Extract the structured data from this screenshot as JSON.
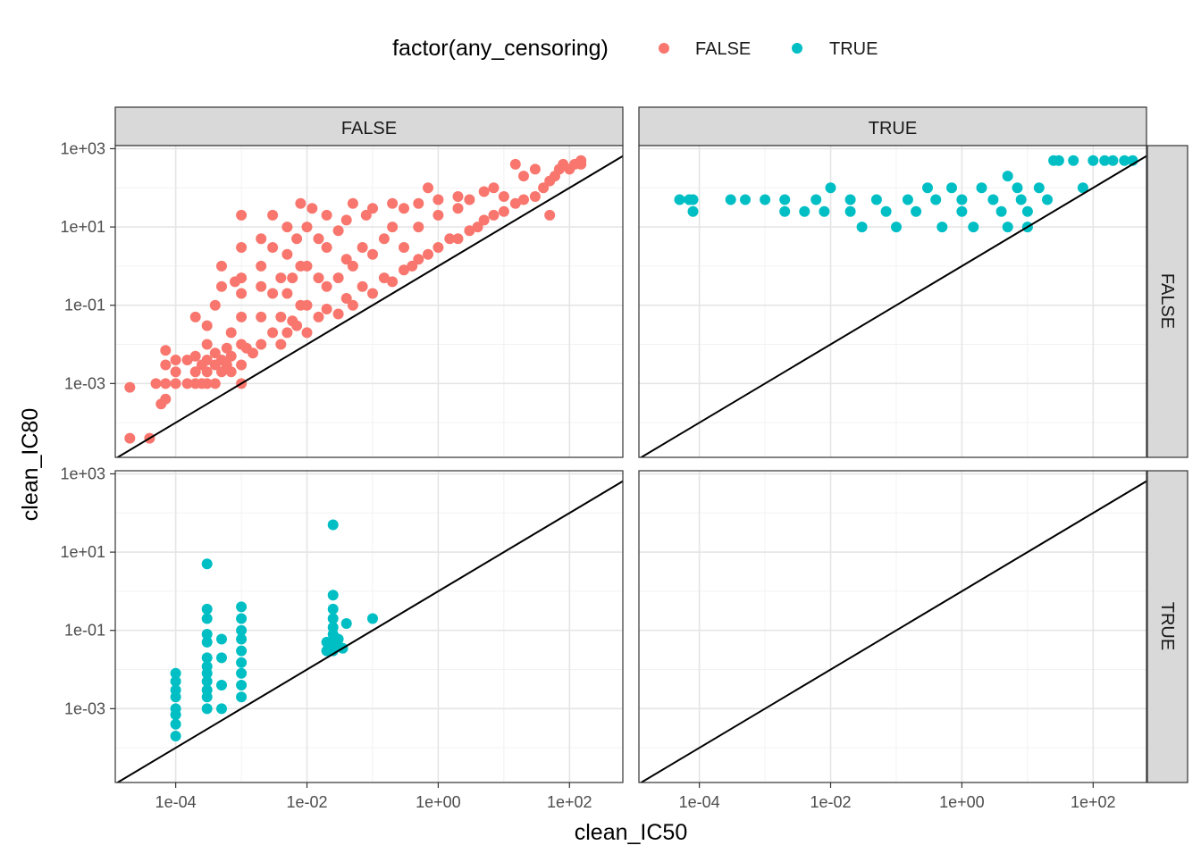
{
  "chart_data": {
    "type": "scatter",
    "facet_grid": {
      "cols_var_levels": [
        "FALSE",
        "TRUE"
      ],
      "rows_var_levels": [
        "FALSE",
        "TRUE"
      ]
    },
    "xlabel": "clean_IC50",
    "ylabel": "clean_IC80",
    "x_scale": "log10",
    "y_scale": "log10",
    "x_ticks": [
      "1e-04",
      "1e-02",
      "1e+00",
      "1e+02"
    ],
    "y_ticks": [
      "1e-03",
      "1e-01",
      "1e+01",
      "1e+03"
    ],
    "xlim": [
      1.2e-05,
      650
    ],
    "ylim": [
      1.3e-05,
      1200
    ],
    "grid": true,
    "reference_line": "y = x",
    "legend": {
      "title": "factor(any_censoring)",
      "position": "top",
      "entries": [
        {
          "label": "FALSE",
          "color": "#F8766D"
        },
        {
          "label": "TRUE",
          "color": "#00BFC4"
        }
      ]
    },
    "panels": [
      {
        "col": "FALSE",
        "row": "FALSE",
        "color": "#F8766D",
        "points": [
          [
            2e-05,
            0.0008
          ],
          [
            2e-05,
            4e-05
          ],
          [
            4e-05,
            4e-05
          ],
          [
            5e-05,
            0.001
          ],
          [
            6e-05,
            0.0003
          ],
          [
            7e-05,
            0.0004
          ],
          [
            7e-05,
            0.001
          ],
          [
            7e-05,
            0.003
          ],
          [
            7e-05,
            0.007
          ],
          [
            0.0001,
            0.001
          ],
          [
            0.0001,
            0.002
          ],
          [
            0.0001,
            0.004
          ],
          [
            0.00015,
            0.001
          ],
          [
            0.00015,
            0.004
          ],
          [
            0.0002,
            0.001
          ],
          [
            0.0002,
            0.002
          ],
          [
            0.0002,
            0.005
          ],
          [
            0.0002,
            0.05
          ],
          [
            0.00025,
            0.001
          ],
          [
            0.00025,
            0.003
          ],
          [
            0.0003,
            0.001
          ],
          [
            0.0003,
            0.002
          ],
          [
            0.0003,
            0.004
          ],
          [
            0.0003,
            0.01
          ],
          [
            0.0003,
            0.03
          ],
          [
            0.0004,
            0.001
          ],
          [
            0.0004,
            0.003
          ],
          [
            0.0004,
            0.006
          ],
          [
            0.0004,
            0.1
          ],
          [
            0.0005,
            0.002
          ],
          [
            0.0005,
            0.004
          ],
          [
            0.0005,
            0.3
          ],
          [
            0.0005,
            1
          ],
          [
            0.0006,
            0.003
          ],
          [
            0.0006,
            0.008
          ],
          [
            0.0007,
            0.002
          ],
          [
            0.0007,
            0.005
          ],
          [
            0.0007,
            0.02
          ],
          [
            0.0008,
            0.4
          ],
          [
            0.001,
            0.001
          ],
          [
            0.001,
            0.003
          ],
          [
            0.001,
            0.01
          ],
          [
            0.001,
            0.05
          ],
          [
            0.001,
            0.2
          ],
          [
            0.001,
            0.5
          ],
          [
            0.001,
            3
          ],
          [
            0.001,
            20
          ],
          [
            0.0012,
            0.008
          ],
          [
            0.0015,
            0.006
          ],
          [
            0.002,
            0.01
          ],
          [
            0.002,
            0.05
          ],
          [
            0.002,
            0.3
          ],
          [
            0.002,
            1
          ],
          [
            0.002,
            5
          ],
          [
            0.003,
            0.02
          ],
          [
            0.003,
            0.2
          ],
          [
            0.003,
            3
          ],
          [
            0.003,
            20
          ],
          [
            0.004,
            0.01
          ],
          [
            0.004,
            0.05
          ],
          [
            0.004,
            0.5
          ],
          [
            0.005,
            0.02
          ],
          [
            0.005,
            0.2
          ],
          [
            0.005,
            2
          ],
          [
            0.005,
            10
          ],
          [
            0.006,
            0.04
          ],
          [
            0.006,
            0.5
          ],
          [
            0.007,
            0.03
          ],
          [
            0.007,
            5
          ],
          [
            0.008,
            0.1
          ],
          [
            0.008,
            1
          ],
          [
            0.008,
            40
          ],
          [
            0.01,
            0.02
          ],
          [
            0.01,
            0.1
          ],
          [
            0.01,
            1
          ],
          [
            0.01,
            10
          ],
          [
            0.012,
            30
          ],
          [
            0.015,
            0.05
          ],
          [
            0.015,
            0.5
          ],
          [
            0.015,
            5
          ],
          [
            0.02,
            0.08
          ],
          [
            0.02,
            0.3
          ],
          [
            0.02,
            3
          ],
          [
            0.02,
            20
          ],
          [
            0.03,
            0.06
          ],
          [
            0.03,
            0.5
          ],
          [
            0.03,
            8
          ],
          [
            0.04,
            0.15
          ],
          [
            0.04,
            1.5
          ],
          [
            0.04,
            15
          ],
          [
            0.05,
            0.1
          ],
          [
            0.05,
            1
          ],
          [
            0.05,
            40
          ],
          [
            0.07,
            0.3
          ],
          [
            0.07,
            3
          ],
          [
            0.08,
            20
          ],
          [
            0.1,
            0.2
          ],
          [
            0.1,
            2
          ],
          [
            0.1,
            30
          ],
          [
            0.15,
            0.5
          ],
          [
            0.15,
            5
          ],
          [
            0.2,
            0.4
          ],
          [
            0.2,
            10
          ],
          [
            0.2,
            40
          ],
          [
            0.3,
            0.8
          ],
          [
            0.3,
            3
          ],
          [
            0.3,
            30
          ],
          [
            0.4,
            1
          ],
          [
            0.5,
            1.5
          ],
          [
            0.5,
            10
          ],
          [
            0.5,
            40
          ],
          [
            0.7,
            100
          ],
          [
            0.7,
            2
          ],
          [
            1,
            3
          ],
          [
            1,
            20
          ],
          [
            1,
            50
          ],
          [
            1.5,
            5
          ],
          [
            2,
            5
          ],
          [
            2,
            30
          ],
          [
            2,
            60
          ],
          [
            3,
            8
          ],
          [
            3,
            50
          ],
          [
            4,
            10
          ],
          [
            5,
            15
          ],
          [
            5,
            80
          ],
          [
            7,
            20
          ],
          [
            7,
            100
          ],
          [
            10,
            25
          ],
          [
            10,
            60
          ],
          [
            15,
            40
          ],
          [
            15,
            400
          ],
          [
            20,
            50
          ],
          [
            20,
            200
          ],
          [
            30,
            60
          ],
          [
            30,
            300
          ],
          [
            40,
            100
          ],
          [
            50,
            150
          ],
          [
            50,
            20
          ],
          [
            60,
            200
          ],
          [
            70,
            300
          ],
          [
            80,
            400
          ],
          [
            100,
            300
          ],
          [
            120,
            400
          ],
          [
            150,
            400
          ],
          [
            150,
            500
          ]
        ]
      },
      {
        "col": "TRUE",
        "row": "FALSE",
        "color": "#00BFC4",
        "points": [
          [
            5e-05,
            50
          ],
          [
            7e-05,
            50
          ],
          [
            8e-05,
            50
          ],
          [
            8e-05,
            25
          ],
          [
            0.0003,
            50
          ],
          [
            0.0005,
            50
          ],
          [
            0.001,
            50
          ],
          [
            0.002,
            50
          ],
          [
            0.002,
            25
          ],
          [
            0.004,
            25
          ],
          [
            0.006,
            50
          ],
          [
            0.008,
            25
          ],
          [
            0.01,
            100
          ],
          [
            0.02,
            50
          ],
          [
            0.02,
            25
          ],
          [
            0.03,
            10
          ],
          [
            0.05,
            50
          ],
          [
            0.07,
            25
          ],
          [
            0.1,
            10
          ],
          [
            0.15,
            50
          ],
          [
            0.2,
            25
          ],
          [
            0.3,
            100
          ],
          [
            0.4,
            50
          ],
          [
            0.5,
            10
          ],
          [
            0.7,
            100
          ],
          [
            1,
            25
          ],
          [
            1,
            50
          ],
          [
            1.5,
            10
          ],
          [
            2,
            100
          ],
          [
            3,
            50
          ],
          [
            4,
            25
          ],
          [
            5,
            200
          ],
          [
            5,
            10
          ],
          [
            7,
            100
          ],
          [
            8,
            50
          ],
          [
            10,
            25
          ],
          [
            10,
            10
          ],
          [
            15,
            100
          ],
          [
            20,
            50
          ],
          [
            25,
            500
          ],
          [
            30,
            500
          ],
          [
            50,
            500
          ],
          [
            70,
            100
          ],
          [
            100,
            500
          ],
          [
            150,
            500
          ],
          [
            200,
            500
          ],
          [
            300,
            500
          ],
          [
            400,
            500
          ]
        ]
      },
      {
        "col": "FALSE",
        "row": "TRUE",
        "color": "#00BFC4",
        "points": [
          [
            0.0001,
            0.0002
          ],
          [
            0.0001,
            0.0004
          ],
          [
            0.0001,
            0.0007
          ],
          [
            0.0001,
            0.001
          ],
          [
            0.0001,
            0.002
          ],
          [
            0.0001,
            0.003
          ],
          [
            0.0001,
            0.005
          ],
          [
            0.0001,
            0.008
          ],
          [
            0.0003,
            0.001
          ],
          [
            0.0003,
            0.002
          ],
          [
            0.0003,
            0.003
          ],
          [
            0.0003,
            0.005
          ],
          [
            0.0003,
            0.008
          ],
          [
            0.0003,
            0.012
          ],
          [
            0.0003,
            0.02
          ],
          [
            0.0003,
            0.05
          ],
          [
            0.0003,
            0.08
          ],
          [
            0.0003,
            0.2
          ],
          [
            0.0003,
            0.35
          ],
          [
            0.0003,
            5
          ],
          [
            0.0005,
            0.001
          ],
          [
            0.0005,
            0.004
          ],
          [
            0.0005,
            0.02
          ],
          [
            0.0005,
            0.06
          ],
          [
            0.001,
            0.002
          ],
          [
            0.001,
            0.004
          ],
          [
            0.001,
            0.008
          ],
          [
            0.001,
            0.015
          ],
          [
            0.001,
            0.03
          ],
          [
            0.001,
            0.06
          ],
          [
            0.001,
            0.1
          ],
          [
            0.001,
            0.2
          ],
          [
            0.001,
            0.4
          ],
          [
            0.02,
            0.03
          ],
          [
            0.02,
            0.05
          ],
          [
            0.025,
            0.03
          ],
          [
            0.025,
            0.05
          ],
          [
            0.025,
            0.08
          ],
          [
            0.025,
            0.12
          ],
          [
            0.025,
            0.2
          ],
          [
            0.025,
            0.35
          ],
          [
            0.025,
            0.8
          ],
          [
            0.025,
            50
          ],
          [
            0.03,
            0.04
          ],
          [
            0.03,
            0.06
          ],
          [
            0.035,
            0.035
          ],
          [
            0.04,
            0.15
          ],
          [
            0.1,
            0.2
          ]
        ]
      },
      {
        "col": "TRUE",
        "row": "TRUE",
        "color": "#00BFC4",
        "points": []
      }
    ]
  }
}
